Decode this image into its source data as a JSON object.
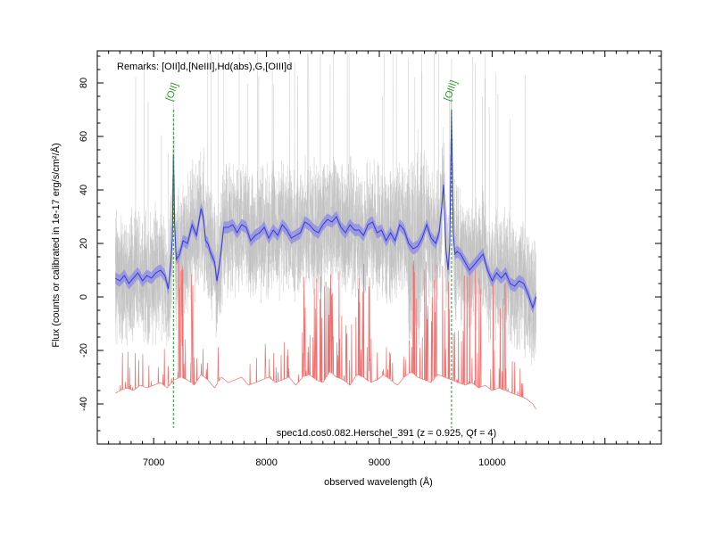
{
  "chart_data": {
    "type": "line",
    "title": "",
    "remarks": "Remarks: [OII]d,[NeIII],Hd(abs),G,[OIII]d",
    "footer": "spec1d.cos0.082.Herschel_391 (z = 0.925, Qf = 4)",
    "xlabel": "observed wavelength (Å)",
    "ylabel": "Flux (counts or calibrated in 1e-17 erg/s/cm²/Å)",
    "xlim": [
      6500,
      11500
    ],
    "ylim": [
      -55,
      92
    ],
    "xticks": [
      7000,
      8000,
      9000,
      10000
    ],
    "xtick_labels": [
      "7000",
      "8000",
      "9000",
      "10000"
    ],
    "yticks": [
      -40,
      -20,
      0,
      20,
      40,
      60,
      80
    ],
    "ytick_labels": [
      "-40",
      "-20",
      "0",
      "20",
      "40",
      "60",
      "80"
    ],
    "grid": false,
    "emission_lines": [
      {
        "label": "[OII]",
        "wavelength": 7175
      },
      {
        "label": "[OIII]",
        "wavelength": 9640
      }
    ],
    "colors": {
      "flux": "#3a3ad6",
      "flux_band": "#8a8ae8",
      "raw_pixels": "#c0c0c0",
      "error": "#f07070",
      "line_marker": "#2a9a2a"
    },
    "series": [
      {
        "style": "smoothed",
        "x": [
          6660,
          6700,
          6740,
          6780,
          6820,
          6860,
          6900,
          6940,
          6980,
          7020,
          7060,
          7100,
          7130,
          7150,
          7165,
          7175,
          7185,
          7200,
          7230,
          7260,
          7300,
          7340,
          7380,
          7420,
          7440,
          7460,
          7480,
          7500,
          7520,
          7540,
          7560,
          7580,
          7600,
          7620,
          7660,
          7700,
          7740,
          7780,
          7820,
          7860,
          7900,
          7940,
          7980,
          8020,
          8060,
          8100,
          8140,
          8180,
          8220,
          8260,
          8300,
          8340,
          8380,
          8420,
          8460,
          8500,
          8540,
          8580,
          8620,
          8660,
          8700,
          8740,
          8780,
          8820,
          8860,
          8900,
          8940,
          8980,
          9020,
          9060,
          9100,
          9140,
          9180,
          9220,
          9260,
          9300,
          9340,
          9380,
          9420,
          9460,
          9500,
          9530,
          9550,
          9570,
          9590,
          9610,
          9625,
          9640,
          9655,
          9670,
          9690,
          9720,
          9760,
          9800,
          9840,
          9880,
          9920,
          9960,
          10000,
          10040,
          10080,
          10120,
          10160,
          10200,
          10240,
          10280,
          10320,
          10360,
          10390
        ],
        "y": [
          7,
          6,
          8,
          5,
          7,
          9,
          6,
          8,
          7,
          9,
          10,
          8,
          3,
          12,
          22,
          53,
          28,
          14,
          16,
          21,
          20,
          27,
          23,
          33,
          30,
          21,
          20,
          17,
          15,
          13,
          6,
          11,
          18,
          26,
          26,
          27,
          24,
          27,
          26,
          21,
          23,
          24,
          26,
          22,
          25,
          23,
          27,
          25,
          22,
          23,
          24,
          28,
          27,
          25,
          24,
          27,
          29,
          28,
          30,
          26,
          24,
          27,
          25,
          25,
          23,
          27,
          28,
          24,
          25,
          21,
          24,
          21,
          27,
          25,
          20,
          18,
          19,
          22,
          27,
          22,
          20,
          24,
          32,
          42,
          18,
          10,
          20,
          70,
          24,
          16,
          17,
          16,
          13,
          10,
          12,
          14,
          16,
          10,
          6,
          9,
          7,
          9,
          5,
          4,
          6,
          5,
          1,
          -4,
          0
        ]
      },
      {
        "style": "error",
        "x": [
          6660,
          6700,
          6760,
          6820,
          6880,
          6940,
          7000,
          7060,
          7120,
          7180,
          7240,
          7300,
          7360,
          7420,
          7480,
          7540,
          7600,
          7660,
          7720,
          7780,
          7840,
          7900,
          7960,
          8020,
          8080,
          8140,
          8200,
          8260,
          8320,
          8380,
          8440,
          8500,
          8560,
          8620,
          8680,
          8740,
          8800,
          8860,
          8920,
          8980,
          9040,
          9100,
          9160,
          9220,
          9280,
          9340,
          9400,
          9460,
          9520,
          9580,
          9640,
          9700,
          9760,
          9820,
          9880,
          9940,
          10000,
          10060,
          10120,
          10180,
          10240,
          10300,
          10360,
          10390
        ],
        "y": [
          -36,
          -35,
          -34,
          -35,
          -33,
          -34,
          -33,
          -32,
          -34,
          -31,
          -30,
          -31,
          -33,
          -29,
          -31,
          -34,
          -30,
          -32,
          -31,
          -30,
          -33,
          -32,
          -31,
          -30,
          -32,
          -31,
          -30,
          -33,
          -30,
          -29,
          -31,
          -32,
          -28,
          -30,
          -31,
          -33,
          -29,
          -30,
          -32,
          -31,
          -29,
          -31,
          -33,
          -30,
          -28,
          -30,
          -31,
          -32,
          -29,
          -30,
          -31,
          -32,
          -33,
          -32,
          -34,
          -33,
          -35,
          -34,
          -35,
          -36,
          -37,
          -38,
          -40,
          -42
        ]
      }
    ]
  }
}
